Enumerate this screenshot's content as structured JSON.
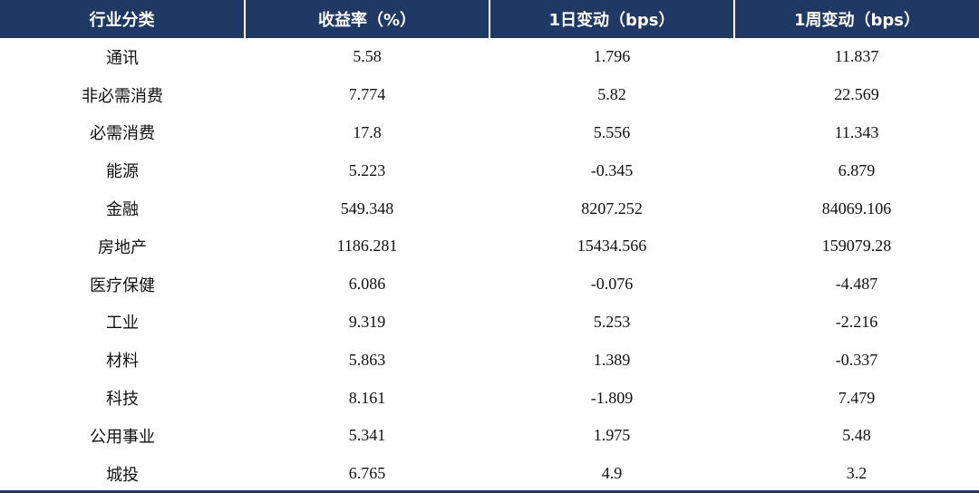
{
  "colors": {
    "header_bg": "#1f3864",
    "header_text": "#ffffff",
    "body_text": "#111111",
    "rule": "#1f3864"
  },
  "table": {
    "headers": [
      "行业分类",
      "收益率（%）",
      "1日变动（bps）",
      "1周变动（bps）"
    ],
    "rows": [
      [
        "通讯",
        "5.58",
        "1.796",
        "11.837"
      ],
      [
        "非必需消费",
        "7.774",
        "5.82",
        "22.569"
      ],
      [
        "必需消费",
        "17.8",
        "5.556",
        "11.343"
      ],
      [
        "能源",
        "5.223",
        "-0.345",
        "6.879"
      ],
      [
        "金融",
        "549.348",
        "8207.252",
        "84069.106"
      ],
      [
        "房地产",
        "1186.281",
        "15434.566",
        "159079.28"
      ],
      [
        "医疗保健",
        "6.086",
        "-0.076",
        "-4.487"
      ],
      [
        "工业",
        "9.319",
        "5.253",
        "-2.216"
      ],
      [
        "材料",
        "5.863",
        "1.389",
        "-0.337"
      ],
      [
        "科技",
        "8.161",
        "-1.809",
        "7.479"
      ],
      [
        "公用事业",
        "5.341",
        "1.975",
        "5.48"
      ],
      [
        "城投",
        "6.765",
        "4.9",
        "3.2"
      ]
    ]
  }
}
